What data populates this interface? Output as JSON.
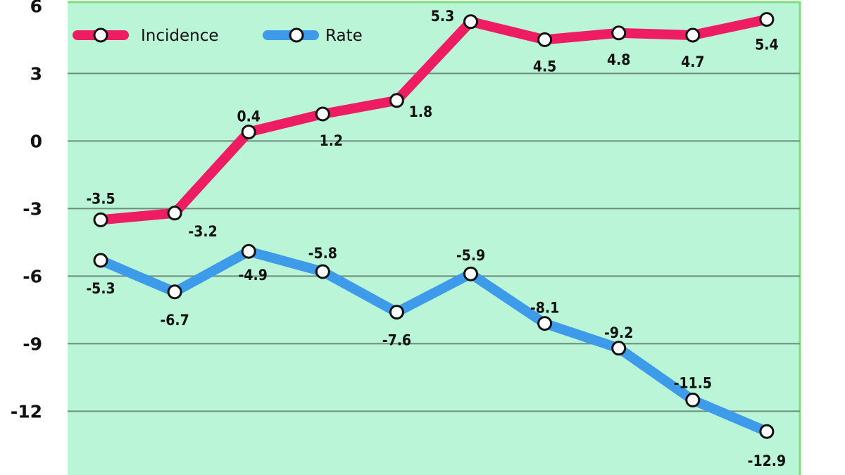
{
  "chart_data": {
    "type": "line",
    "title": "",
    "xlabel": "",
    "ylabel": "",
    "ylim": [
      -14.8,
      6.2
    ],
    "yticks": [
      6,
      3,
      0,
      -3,
      -6,
      -9,
      -12
    ],
    "grid": true,
    "legend_placement": "top-left",
    "background_color": "#baf5d8",
    "series": [
      {
        "name": "Incidence",
        "color": "#ee1c63",
        "values": [
          -3.5,
          -3.2,
          0.4,
          1.2,
          1.8,
          5.3,
          4.5,
          4.8,
          4.7,
          5.4
        ],
        "labels": [
          "-3.5",
          "-3.2",
          "0.4",
          "1.2",
          "1.8",
          "5.3",
          "4.5",
          "4.8",
          "4.7",
          "5.4"
        ]
      },
      {
        "name": "Rate",
        "color": "#3d9be9",
        "values": [
          -5.3,
          -6.7,
          -4.9,
          -5.8,
          -7.6,
          -5.9,
          -8.1,
          -9.2,
          -11.5,
          -12.9
        ],
        "labels": [
          "-5.3",
          "-6.7",
          "-4.9",
          "-5.8",
          "-7.6",
          "-5.9",
          "-8.1",
          "-9.2",
          "-11.5",
          "-12.9"
        ]
      }
    ]
  }
}
